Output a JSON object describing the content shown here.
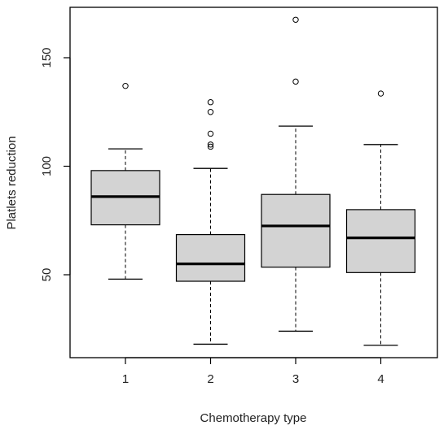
{
  "chart_data": {
    "type": "boxplot",
    "title": "",
    "xlabel": "Chemotherapy type",
    "ylabel": "Platlets reduction",
    "categories": [
      "1",
      "2",
      "3",
      "4"
    ],
    "ylim": [
      10,
      172
    ],
    "yticks": [
      50,
      100,
      150
    ],
    "grid": false,
    "box_fill": "#d3d3d3",
    "line_color": "#000000",
    "boxes": [
      {
        "category": "1",
        "whisker_low": 48,
        "q1": 73,
        "median": 86,
        "q3": 98,
        "whisker_high": 108,
        "outliers": [
          137
        ]
      },
      {
        "category": "2",
        "whisker_low": 18,
        "q1": 47,
        "median": 55,
        "q3": 68.5,
        "whisker_high": 99,
        "outliers": [
          109,
          110,
          115,
          125,
          129.5
        ]
      },
      {
        "category": "3",
        "whisker_low": 24,
        "q1": 53.5,
        "median": 72.5,
        "q3": 87,
        "whisker_high": 118.5,
        "outliers": [
          139,
          167.5
        ]
      },
      {
        "category": "4",
        "whisker_low": 17.5,
        "q1": 51,
        "median": 67,
        "q3": 80,
        "whisker_high": 110,
        "outliers": [
          133.5
        ]
      }
    ]
  }
}
